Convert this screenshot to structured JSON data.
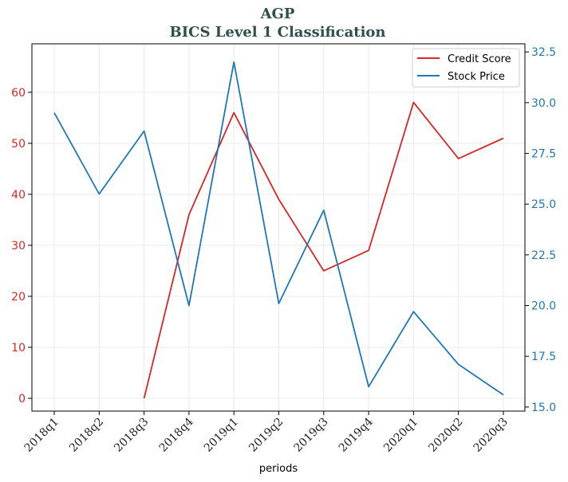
{
  "chart_data": {
    "type": "line",
    "title": "AGP",
    "subtitle": "BICS Level 1 Classification",
    "xlabel": "periods",
    "categories": [
      "2018q1",
      "2018q2",
      "2018q3",
      "2018q4",
      "2019q1",
      "2019q2",
      "2019q3",
      "2019q4",
      "2020q1",
      "2020q2",
      "2020q3"
    ],
    "series": [
      {
        "name": "Credit Score",
        "axis": "left",
        "color": "#d62728",
        "values": [
          null,
          null,
          0,
          36,
          56,
          39,
          25,
          29,
          58,
          47,
          51
        ]
      },
      {
        "name": "Stock Price",
        "axis": "right",
        "color": "#1f77b4",
        "values": [
          29.5,
          25.5,
          28.6,
          20.0,
          32.0,
          20.1,
          24.7,
          16.0,
          19.7,
          17.1,
          15.6
        ]
      }
    ],
    "y_left": {
      "ylim": [
        -2.5,
        69.5
      ],
      "ticks": [
        0,
        10,
        20,
        30,
        40,
        50,
        60
      ],
      "tick_labels": [
        "0",
        "10",
        "20",
        "30",
        "40",
        "50",
        "60"
      ],
      "tick_color": "#d62728"
    },
    "y_right": {
      "ylim": [
        14.8,
        32.9
      ],
      "ticks": [
        15.0,
        17.5,
        20.0,
        22.5,
        25.0,
        27.5,
        30.0,
        32.5
      ],
      "tick_labels": [
        "15.0",
        "17.5",
        "20.0",
        "22.5",
        "25.0",
        "27.5",
        "30.0",
        "32.5"
      ],
      "tick_color": "#1f77b4"
    },
    "grid": true,
    "legend_position": "top-right"
  }
}
